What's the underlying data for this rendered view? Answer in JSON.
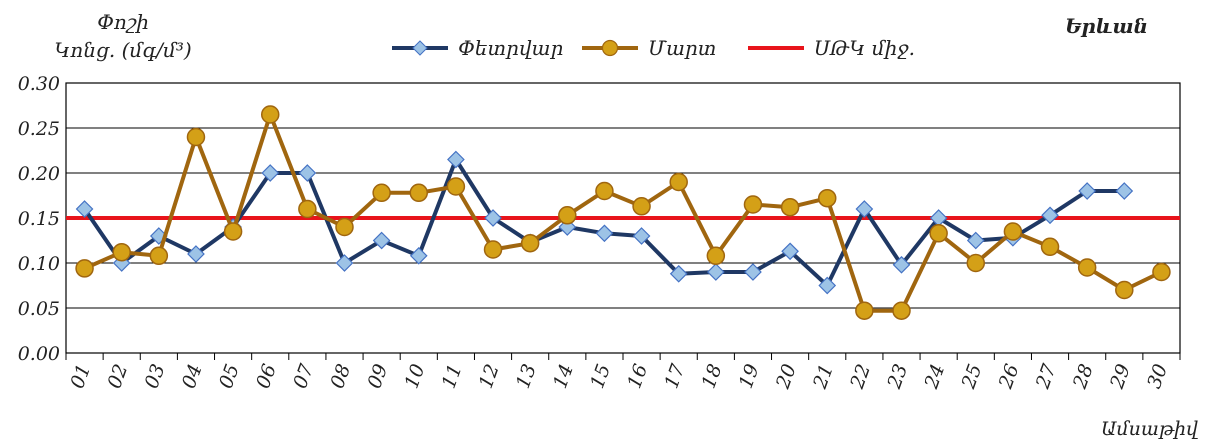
{
  "chart_data": {
    "type": "line",
    "title": "",
    "location": "Երևան",
    "ylabel_line1": "Փոշի",
    "ylabel_line2": "Կոնց. (մգ/մ³)",
    "xlabel": "Ամսաթիվ",
    "ylim": [
      0,
      0.3
    ],
    "yticks": [
      "0.00",
      "0.05",
      "0.10",
      "0.15",
      "0.20",
      "0.25",
      "0.30"
    ],
    "grid": true,
    "legend_position": "top",
    "categories": [
      "01",
      "02",
      "03",
      "04",
      "05",
      "06",
      "07",
      "08",
      "09",
      "10",
      "11",
      "12",
      "13",
      "14",
      "15",
      "16",
      "17",
      "18",
      "19",
      "20",
      "21",
      "22",
      "23",
      "24",
      "25",
      "26",
      "27",
      "28",
      "29",
      "30"
    ],
    "series": [
      {
        "name": "Փետրվար",
        "color": "#1f3864",
        "marker": "diamond",
        "marker_color": "#9dc3e6",
        "values": [
          0.16,
          0.1,
          0.13,
          0.11,
          0.14,
          0.2,
          0.2,
          0.1,
          0.125,
          0.108,
          0.215,
          0.15,
          0.123,
          0.14,
          0.133,
          0.13,
          0.088,
          0.09,
          0.09,
          0.113,
          0.075,
          0.16,
          0.098,
          0.15,
          0.125,
          0.128,
          0.153,
          0.18,
          0.18,
          null
        ]
      },
      {
        "name": "Մարտ",
        "color": "#a0660f",
        "marker": "circle",
        "marker_color": "#d4a017",
        "values": [
          0.094,
          0.112,
          0.108,
          0.24,
          0.135,
          0.265,
          0.16,
          0.14,
          0.178,
          0.178,
          0.185,
          0.115,
          0.122,
          0.153,
          0.18,
          0.163,
          0.19,
          0.108,
          0.165,
          0.162,
          0.172,
          0.047,
          0.047,
          0.133,
          0.1,
          0.135,
          0.118,
          0.095,
          0.07,
          0.09
        ]
      }
    ],
    "reference_line": {
      "name": "ՍԹԿ միջ.",
      "value": 0.15,
      "color": "#e8141b"
    }
  }
}
